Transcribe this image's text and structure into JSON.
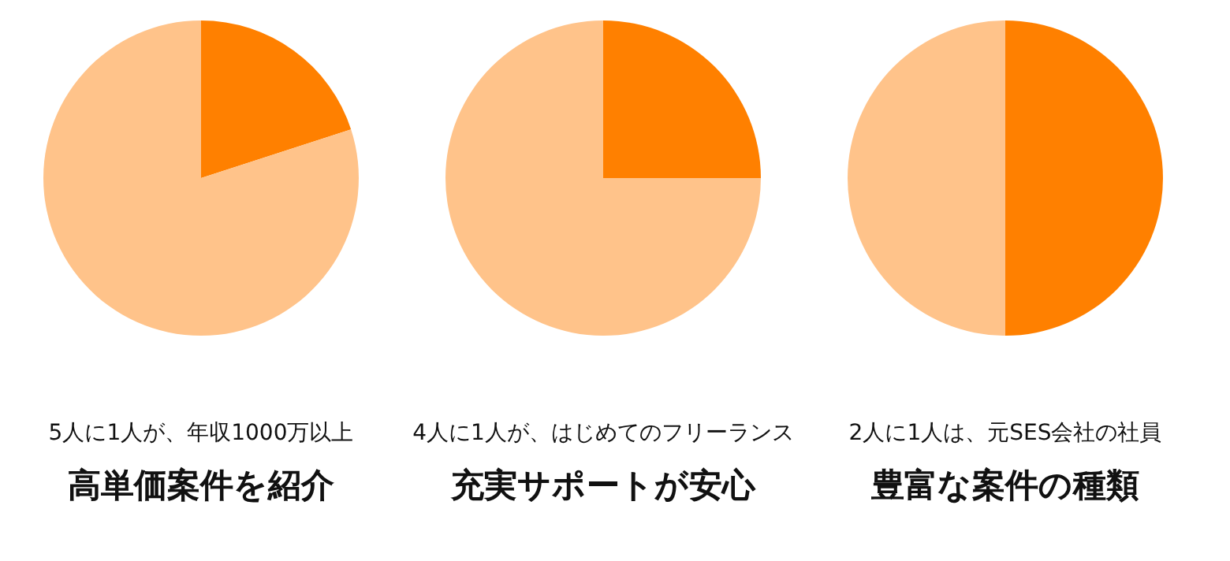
{
  "chart_data": [
    {
      "type": "pie",
      "subtitle": "5人に1人が、年収1000万以上",
      "title": "高単価案件を紹介",
      "categories": [
        null,
        null
      ],
      "values": [
        20,
        80
      ],
      "colors": [
        "#ff8000",
        "#ffc38a"
      ]
    },
    {
      "type": "pie",
      "subtitle": "4人に1人が、はじめてのフリーランス",
      "title": "充実サポートが安心",
      "categories": [
        null,
        null
      ],
      "values": [
        25,
        75
      ],
      "colors": [
        "#ff8000",
        "#ffc38a"
      ]
    },
    {
      "type": "pie",
      "subtitle": "2人に1人は、元SES会社の社員",
      "title": "豊富な案件の種類",
      "categories": [
        null,
        null
      ],
      "values": [
        50,
        50
      ],
      "colors": [
        "#ff8000",
        "#ffc38a"
      ]
    }
  ]
}
